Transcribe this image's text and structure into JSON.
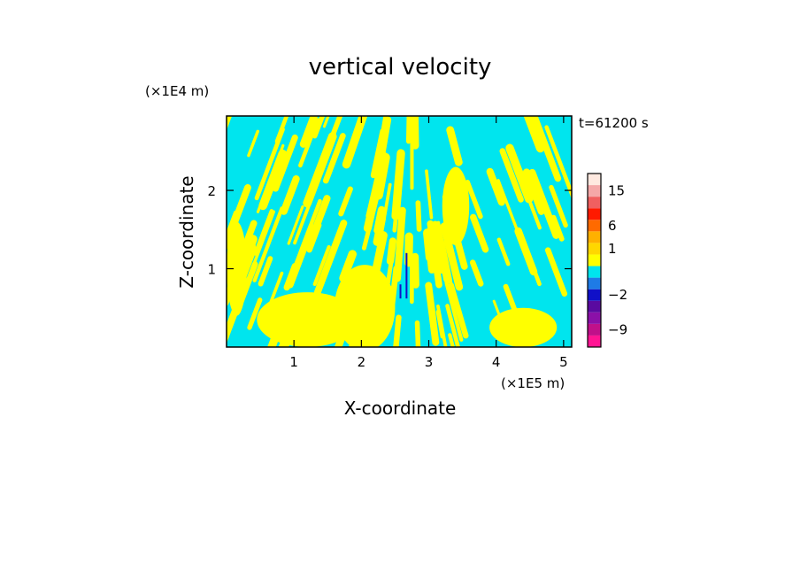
{
  "chart_data": {
    "type": "heatmap",
    "title": "vertical velocity",
    "xlabel": "X-coordinate",
    "ylabel": "Z-coordinate",
    "x_unit": "(×1E5 m)",
    "y_unit": "(×1E4 m)",
    "time_label": "t=61200 s",
    "xlim": [
      0,
      5.12
    ],
    "ylim": [
      0,
      2.95
    ],
    "x_ticks": [
      1,
      2,
      3,
      4,
      5
    ],
    "y_ticks": [
      1,
      2
    ],
    "colorbar": {
      "tick_labels": [
        {
          "label": "15",
          "value": 15
        },
        {
          "label": "6",
          "value": 6
        },
        {
          "label": "1",
          "value": 1
        },
        {
          "label": "−2",
          "value": -2
        },
        {
          "label": "−9",
          "value": -9
        }
      ],
      "levels": [
        {
          "color": "#ff1493",
          "value": -12
        },
        {
          "color": "#c0108a",
          "value": -9
        },
        {
          "color": "#8b10a8",
          "value": -6
        },
        {
          "color": "#5a0aa0",
          "value": -4
        },
        {
          "color": "#1010c8",
          "value": -2
        },
        {
          "color": "#1e7be6",
          "value": -1
        },
        {
          "color": "#00e5ee",
          "value": 0
        },
        {
          "color": "#ffff00",
          "value": 0.5
        },
        {
          "color": "#ffd700",
          "value": 1
        },
        {
          "color": "#ffb000",
          "value": 2
        },
        {
          "color": "#ff6a00",
          "value": 6
        },
        {
          "color": "#ff1a00",
          "value": 9
        },
        {
          "color": "#f06060",
          "value": 12
        },
        {
          "color": "#f5a8a8",
          "value": 15
        },
        {
          "color": "#ffe9e0",
          "value": 18
        }
      ]
    },
    "dominant_colors": {
      "updraft": "#ffff00",
      "downdraft": "#00e5ee",
      "strong_downdraft": "#1010c8"
    }
  }
}
